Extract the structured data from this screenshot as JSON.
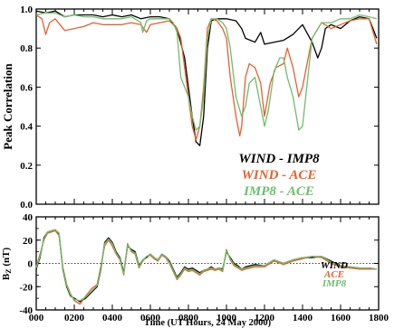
{
  "chart_data": [
    {
      "type": "line",
      "ylabel": "Peak Correlation",
      "ylim": [
        0,
        1
      ],
      "xlim": [
        0,
        1800
      ],
      "yticks": [
        "0.0",
        "0.2",
        "0.4",
        "0.6",
        "0.8",
        "1.0"
      ],
      "legend_placement": "bottom-right",
      "series": [
        {
          "name": "WIND - IMP8",
          "color": "#000000",
          "x": [
            0,
            50,
            100,
            150,
            200,
            250,
            300,
            350,
            400,
            450,
            500,
            550,
            600,
            650,
            700,
            740,
            780,
            800,
            820,
            840,
            860,
            880,
            900,
            920,
            950,
            1000,
            1050,
            1080,
            1100,
            1150,
            1180,
            1200,
            1250,
            1300,
            1350,
            1400,
            1450,
            1480,
            1500,
            1520,
            1550,
            1600,
            1650,
            1700,
            1750,
            1790
          ],
          "y": [
            0.99,
            0.98,
            0.99,
            0.96,
            0.97,
            0.97,
            0.97,
            0.96,
            0.97,
            0.96,
            0.97,
            0.95,
            0.96,
            0.96,
            0.95,
            0.9,
            0.75,
            0.6,
            0.45,
            0.32,
            0.3,
            0.45,
            0.8,
            0.94,
            0.95,
            0.95,
            0.94,
            0.9,
            0.85,
            0.83,
            0.88,
            0.82,
            0.83,
            0.84,
            0.87,
            0.92,
            0.83,
            0.75,
            0.8,
            0.9,
            0.92,
            0.9,
            0.94,
            0.96,
            0.95,
            0.85
          ]
        },
        {
          "name": "WIND - ACE",
          "color": "#e8602d",
          "x": [
            0,
            30,
            50,
            70,
            100,
            150,
            200,
            250,
            300,
            350,
            400,
            450,
            500,
            550,
            580,
            600,
            650,
            700,
            720,
            740,
            760,
            780,
            800,
            820,
            840,
            860,
            880,
            900,
            920,
            950,
            980,
            1000,
            1020,
            1050,
            1070,
            1080,
            1100,
            1120,
            1150,
            1180,
            1200,
            1230,
            1260,
            1300,
            1320,
            1350,
            1380,
            1400,
            1450,
            1500,
            1550,
            1600,
            1650,
            1700,
            1750,
            1790
          ],
          "y": [
            0.97,
            0.95,
            0.87,
            0.93,
            0.95,
            0.89,
            0.9,
            0.91,
            0.93,
            0.92,
            0.92,
            0.92,
            0.93,
            0.92,
            0.88,
            0.92,
            0.93,
            0.94,
            0.92,
            0.9,
            0.85,
            0.7,
            0.55,
            0.4,
            0.33,
            0.4,
            0.6,
            0.9,
            0.95,
            0.94,
            0.9,
            0.85,
            0.65,
            0.45,
            0.35,
            0.4,
            0.65,
            0.72,
            0.7,
            0.62,
            0.45,
            0.62,
            0.7,
            0.72,
            0.8,
            0.7,
            0.55,
            0.6,
            0.85,
            0.93,
            0.9,
            0.92,
            0.94,
            0.95,
            0.95,
            0.82
          ]
        },
        {
          "name": "IMP8 - ACE",
          "color": "#6cbf6a",
          "x": [
            0,
            50,
            100,
            150,
            200,
            250,
            300,
            350,
            400,
            450,
            500,
            550,
            560,
            580,
            600,
            650,
            700,
            720,
            740,
            760,
            780,
            800,
            820,
            840,
            860,
            880,
            900,
            920,
            950,
            980,
            1000,
            1020,
            1050,
            1080,
            1100,
            1120,
            1150,
            1180,
            1200,
            1220,
            1250,
            1280,
            1300,
            1320,
            1350,
            1380,
            1400,
            1450,
            1500,
            1550,
            1600,
            1650,
            1700,
            1750,
            1790
          ],
          "y": [
            0.97,
            0.98,
            0.98,
            0.96,
            0.97,
            0.96,
            0.96,
            0.95,
            0.95,
            0.95,
            0.96,
            0.93,
            0.88,
            0.94,
            0.95,
            0.95,
            0.95,
            0.93,
            0.88,
            0.65,
            0.6,
            0.55,
            0.45,
            0.38,
            0.4,
            0.55,
            0.85,
            0.95,
            0.95,
            0.93,
            0.9,
            0.8,
            0.55,
            0.45,
            0.5,
            0.62,
            0.65,
            0.5,
            0.4,
            0.48,
            0.68,
            0.75,
            0.75,
            0.65,
            0.55,
            0.38,
            0.4,
            0.85,
            0.93,
            0.93,
            0.95,
            0.95,
            0.97,
            0.96,
            0.95
          ]
        }
      ]
    },
    {
      "type": "line",
      "ylabel": "B",
      "ylabel_sub": "Z",
      "ylabel_unit": " (nT)",
      "xlabel": "Time (UT Hours, 24 May 2000)",
      "ylim": [
        -40,
        40
      ],
      "xlim": [
        0,
        1800
      ],
      "yticks": [
        "-40",
        "-20",
        "0",
        "20",
        "40"
      ],
      "xticks": [
        "000",
        "0200",
        "0400",
        "0600",
        "0800",
        "1000",
        "1200",
        "1400",
        "1600",
        "1800"
      ],
      "zero_line": "dotted",
      "legend_placement": "bottom-right",
      "series": [
        {
          "name": "WIND",
          "color": "#000000",
          "x": [
            0,
            20,
            40,
            60,
            80,
            100,
            120,
            140,
            160,
            180,
            200,
            230,
            260,
            290,
            320,
            340,
            360,
            380,
            400,
            420,
            440,
            460,
            480,
            500,
            520,
            540,
            560,
            580,
            600,
            620,
            640,
            660,
            680,
            700,
            720,
            740,
            760,
            780,
            800,
            820,
            840,
            860,
            880,
            900,
            920,
            940,
            960,
            980,
            1000,
            1020,
            1040,
            1060,
            1080,
            1100,
            1150,
            1200,
            1250,
            1300,
            1350,
            1400,
            1450,
            1500,
            1550,
            1600,
            1650,
            1700,
            1750,
            1790
          ],
          "y": [
            -5,
            5,
            22,
            27,
            28,
            29,
            25,
            -5,
            -20,
            -28,
            -30,
            -33,
            -30,
            -25,
            -20,
            -5,
            18,
            22,
            18,
            10,
            5,
            -8,
            15,
            12,
            10,
            -2,
            3,
            5,
            8,
            5,
            3,
            8,
            6,
            2,
            -5,
            -12,
            -8,
            -3,
            -5,
            -4,
            -6,
            -8,
            -6,
            -5,
            -3,
            -5,
            -4,
            -5,
            10,
            5,
            0,
            -2,
            -5,
            -3,
            -1,
            -2,
            3,
            0,
            3,
            5,
            5,
            6,
            2,
            -2,
            -3,
            -4,
            -4,
            -5
          ]
        },
        {
          "name": "ACE",
          "color": "#e8602d",
          "x": [
            0,
            20,
            40,
            60,
            80,
            100,
            120,
            140,
            160,
            180,
            200,
            230,
            260,
            290,
            320,
            340,
            360,
            380,
            400,
            420,
            440,
            460,
            480,
            500,
            520,
            540,
            560,
            580,
            600,
            620,
            640,
            660,
            680,
            700,
            720,
            740,
            760,
            780,
            800,
            820,
            840,
            860,
            880,
            900,
            920,
            940,
            960,
            980,
            1000,
            1020,
            1040,
            1060,
            1080,
            1100,
            1150,
            1200,
            1250,
            1300,
            1350,
            1400,
            1450,
            1500,
            1550,
            1600,
            1650,
            1700,
            1750,
            1790
          ],
          "y": [
            -3,
            8,
            20,
            26,
            27,
            28,
            24,
            -3,
            -18,
            -26,
            -32,
            -35,
            -28,
            -22,
            -18,
            -2,
            15,
            20,
            15,
            8,
            3,
            -10,
            17,
            10,
            8,
            -4,
            2,
            6,
            7,
            4,
            2,
            7,
            5,
            0,
            -7,
            -14,
            -10,
            -5,
            -7,
            -6,
            -8,
            -10,
            -7,
            -6,
            -5,
            -6,
            -5,
            -7,
            12,
            3,
            -2,
            -4,
            -6,
            -5,
            -3,
            -3,
            2,
            -1,
            2,
            4,
            6,
            5,
            0,
            -3,
            -4,
            -5,
            -5,
            -5
          ]
        },
        {
          "name": "IMP8",
          "color": "#6cbf6a",
          "x": [
            0,
            20,
            40,
            60,
            80,
            100,
            120,
            140,
            160,
            180,
            200,
            230,
            260,
            290,
            320,
            340,
            360,
            380,
            400,
            420,
            440,
            460,
            480,
            500,
            520,
            540,
            560,
            580,
            600,
            620,
            640,
            660,
            680,
            700,
            720,
            740,
            760,
            780,
            800,
            820,
            840,
            860,
            880,
            900,
            920,
            940,
            960,
            980,
            1000,
            1020,
            1040,
            1060,
            1080,
            1100,
            1150,
            1200,
            1250,
            1300,
            1350,
            1400,
            1450,
            1500,
            1550,
            1600,
            1650,
            1700,
            1750,
            1790
          ],
          "y": [
            -4,
            6,
            21,
            27,
            28,
            29,
            26,
            -4,
            -19,
            -27,
            -31,
            -32,
            -29,
            -24,
            -19,
            -4,
            17,
            21,
            17,
            9,
            4,
            -9,
            16,
            11,
            9,
            -3,
            3,
            6,
            8,
            5,
            3,
            8,
            6,
            1,
            -6,
            -13,
            -9,
            -4,
            -6,
            -5,
            -7,
            -9,
            -6,
            -5,
            -4,
            -5,
            -4,
            -6,
            11,
            4,
            -1,
            -3,
            -5,
            -4,
            -2,
            -2,
            3,
            0,
            3,
            5,
            6,
            6,
            1,
            -2,
            -3,
            -4,
            -4,
            -5
          ]
        }
      ]
    }
  ]
}
